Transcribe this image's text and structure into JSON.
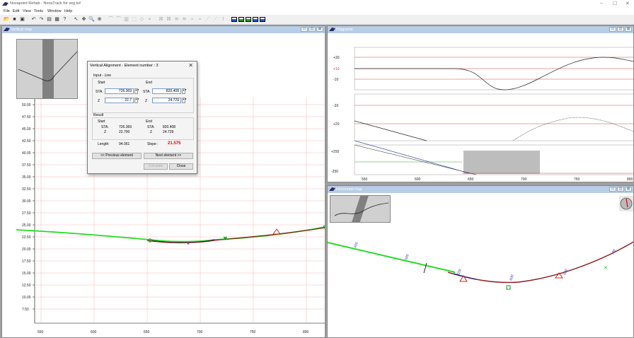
{
  "app": {
    "title": "Novapoint Rehab - NovaTrack for veg.tof",
    "controls": {
      "minimize": "–",
      "maximize": "☐",
      "close": "✕"
    }
  },
  "menu": [
    "File",
    "Edit",
    "View",
    "Tools",
    "Window",
    "Help"
  ],
  "toolbar": {
    "icons": [
      "open-icon",
      "save-icon",
      "save-as-icon",
      "undo-icon",
      "redo-icon",
      "copy-icon",
      "print-icon",
      "help-icon",
      "pointer-icon",
      "pan-icon",
      "zoom-icon",
      "zoom-window-icon",
      "curve-icon",
      "curve-icon",
      "grid-icon",
      "select-icon",
      "eraser-icon",
      "measure-icon",
      "tool-a-icon",
      "tool-b-icon",
      "tool-c-icon",
      "tool-d-icon",
      "tool-e-icon",
      "tool-f-icon",
      "tool-g-icon",
      "tool-h-icon",
      "tool-i-icon",
      "layout-1-icon",
      "layout-2-icon",
      "layout-3-icon",
      "layout-4-icon",
      "layout-5-icon"
    ],
    "glyphs": [
      "📂",
      "■",
      "▣",
      "↶",
      "↷",
      "▤",
      "▦",
      "?",
      "↖",
      "✥",
      "🔍",
      "⊕",
      "⌒",
      "⌒",
      "▥",
      "⬚",
      "◇",
      "⌖",
      "⌘",
      "⌘",
      "≋",
      "≋",
      "⌁",
      "⌁",
      "⋰",
      "⋰",
      "⌇"
    ]
  },
  "windows": {
    "vertical": {
      "title": "Vertical map"
    },
    "diagrams": {
      "title": "Diagrams"
    },
    "horizontal": {
      "title": "Horizontal map"
    }
  },
  "vertical_map": {
    "y_labels": [
      "50.00",
      "47.50",
      "45.00",
      "42.50",
      "40.00",
      "37.50",
      "35.00",
      "32.50",
      "30.00",
      "27.50",
      "25.00",
      "22.50",
      "20.00",
      "17.50",
      "15.00",
      "12.50",
      "10.00",
      "7.50"
    ],
    "x_labels": [
      "550",
      "600",
      "650",
      "700",
      "750",
      "800"
    ]
  },
  "diagrams": {
    "panel1_labels": [
      "+30",
      "+10",
      "-10"
    ],
    "panel2_labels": [
      "-20",
      "+20"
    ],
    "panel3_labels": [
      "+250",
      "-250"
    ],
    "x_labels": [
      "550",
      "600",
      "650",
      "700",
      "750",
      "800"
    ]
  },
  "horizontal_map": {
    "station_labels": [
      "450",
      "500",
      "550",
      "600",
      "650",
      "700"
    ]
  },
  "dialog": {
    "title": "Vertical Alignment - Element number : 3",
    "close": "✕",
    "input_group": "Input - Line",
    "start": "Start",
    "end": "End",
    "sta_label": "STA.",
    "z_label": "Z",
    "start_sta": "726.369",
    "start_z": "22.7",
    "end_sta": "820.408",
    "end_z": "24.729",
    "result_group": "Result",
    "res_start": "Start",
    "res_end": "End",
    "res_sta_label": "STA.",
    "res_z_label": "Z",
    "res_start_sta": "726.369",
    "res_start_z": "22.700",
    "res_end_sta": "820.408",
    "res_end_z": "24.729",
    "length_label": "Length:",
    "length_value": "94.061",
    "slope_label": "Slope :",
    "slope_value": "21.575",
    "slope_color": "#e00000",
    "prev_button": "<< Previous element",
    "next_button": "Next element >>",
    "calculate_button": "Calculate",
    "close_button": "Close"
  }
}
